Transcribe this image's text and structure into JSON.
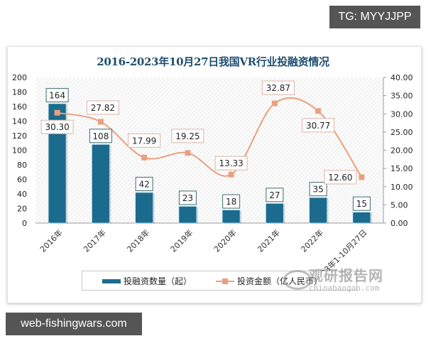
{
  "badges": {
    "top_right": "TG: MYYJJPP",
    "bottom_left": "web-fishingwars.com"
  },
  "watermark": {
    "cn": "观研报告网",
    "en": "chinabaogao.com"
  },
  "colors": {
    "bar": "#1b6b8e",
    "line": "#e9a07f",
    "title": "#1f4e6e"
  },
  "legend": {
    "bar_label": "投融资数量（起）",
    "line_label": "投资金额（亿人民币）"
  },
  "chart_data": {
    "type": "bar+line",
    "title": "2016-2023年10月27日我国VR行业投融资情况",
    "categories": [
      "2016年",
      "2017年",
      "2018年",
      "2019年",
      "2020年",
      "2021年",
      "2022年",
      "2023年1-10月27日"
    ],
    "series": [
      {
        "name": "投融资数量（起）",
        "type": "bar",
        "axis": "left",
        "values": [
          164,
          108,
          42,
          23,
          18,
          27,
          35,
          15
        ]
      },
      {
        "name": "投资金额（亿人民币）",
        "type": "line",
        "axis": "right",
        "values": [
          30.3,
          27.82,
          17.99,
          19.25,
          13.33,
          32.87,
          30.77,
          12.6
        ]
      }
    ],
    "y_left": {
      "ylim": [
        0,
        200
      ],
      "ticks": [
        "0",
        "20",
        "40",
        "60",
        "80",
        "100",
        "120",
        "140",
        "160",
        "180",
        "200"
      ]
    },
    "y_right": {
      "ylim": [
        0,
        40
      ],
      "ticks": [
        "0.00",
        "5.00",
        "10.00",
        "15.00",
        "20.00",
        "25.00",
        "30.00",
        "35.00",
        "40.00"
      ]
    },
    "grid": false,
    "legend_position": "bottom"
  }
}
